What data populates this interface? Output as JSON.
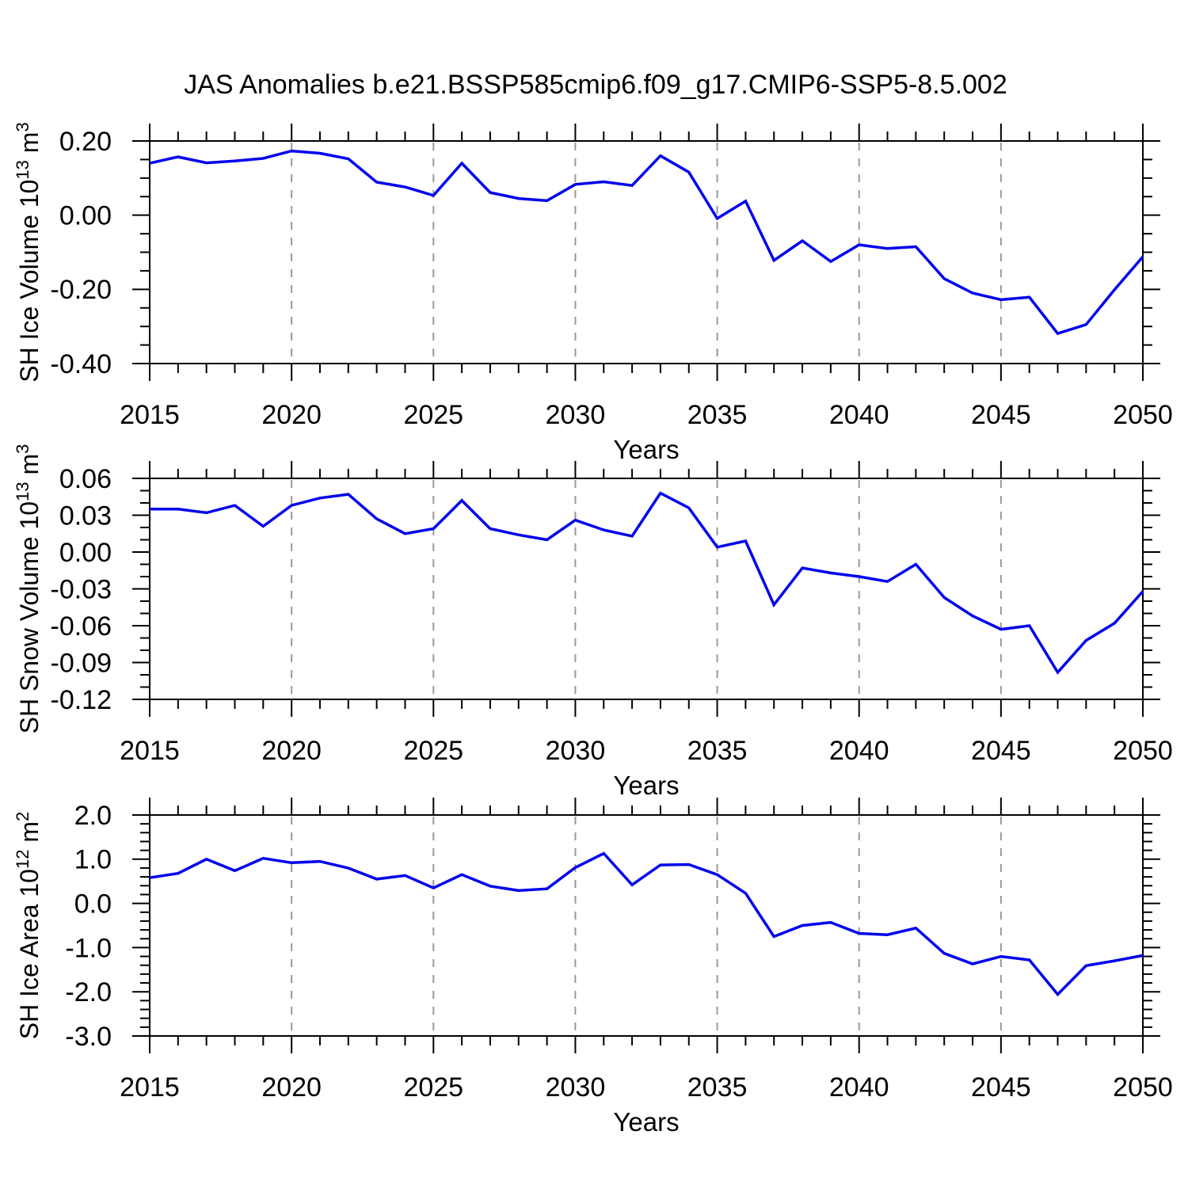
{
  "title": "JAS Anomalies b.e21.BSSP585cmip6.f09_g17.CMIP6-SSP5-8.5.002",
  "style": {
    "line_color": "#0000ee",
    "grid_color": "#999999",
    "axis_color": "#000000",
    "background": "#ffffff"
  },
  "x_axis": {
    "label": "Years",
    "min": 2015,
    "max": 2050,
    "major_step": 5,
    "minor_step": 1,
    "tick_labels": [
      "2015",
      "2020",
      "2025",
      "2030",
      "2035",
      "2040",
      "2045",
      "2050"
    ],
    "gridlines_at": [
      2020,
      2025,
      2030,
      2035,
      2040,
      2045
    ]
  },
  "chart_data": [
    {
      "type": "line",
      "ylabel": "SH Ice Volume 10^13 m^3",
      "ylabel_parts": [
        [
          "t",
          "SH Ice Volume 10"
        ],
        [
          "s",
          "13"
        ],
        [
          "t",
          " m"
        ],
        [
          "s",
          "3"
        ]
      ],
      "xlabel": "Years",
      "x": [
        2015,
        2016,
        2017,
        2018,
        2019,
        2020,
        2021,
        2022,
        2023,
        2024,
        2025,
        2026,
        2027,
        2028,
        2029,
        2030,
        2031,
        2032,
        2033,
        2034,
        2035,
        2036,
        2037,
        2038,
        2039,
        2040,
        2041,
        2042,
        2043,
        2044,
        2045,
        2046,
        2047,
        2048,
        2049,
        2050
      ],
      "values": [
        0.14,
        0.157,
        0.141,
        0.146,
        0.153,
        0.173,
        0.167,
        0.152,
        0.089,
        0.076,
        0.053,
        0.14,
        0.061,
        0.045,
        0.039,
        0.083,
        0.09,
        0.08,
        0.16,
        0.116,
        -0.009,
        0.038,
        -0.122,
        -0.069,
        -0.125,
        -0.08,
        -0.09,
        -0.085,
        -0.171,
        -0.21,
        -0.228,
        -0.221,
        -0.319,
        -0.295,
        -0.201,
        -0.112
      ],
      "ylim": [
        -0.4,
        0.2
      ],
      "yticks": [
        {
          "v": 0.2,
          "label": "0.20"
        },
        {
          "v": 0.0,
          "label": "0.00"
        },
        {
          "v": -0.2,
          "label": "-0.20"
        },
        {
          "v": -0.4,
          "label": "-0.40"
        }
      ],
      "y_minor_step": 0.05,
      "grid": "x-dashed"
    },
    {
      "type": "line",
      "ylabel": "SH Snow Volume 10^13 m^3",
      "ylabel_parts": [
        [
          "t",
          "SH Snow Volume 10"
        ],
        [
          "s",
          "13"
        ],
        [
          "t",
          " m"
        ],
        [
          "s",
          "3"
        ]
      ],
      "xlabel": "Years",
      "x": [
        2015,
        2016,
        2017,
        2018,
        2019,
        2020,
        2021,
        2022,
        2023,
        2024,
        2025,
        2026,
        2027,
        2028,
        2029,
        2030,
        2031,
        2032,
        2033,
        2034,
        2035,
        2036,
        2037,
        2038,
        2039,
        2040,
        2041,
        2042,
        2043,
        2044,
        2045,
        2046,
        2047,
        2048,
        2049,
        2050
      ],
      "values": [
        0.035,
        0.035,
        0.032,
        0.038,
        0.021,
        0.038,
        0.044,
        0.047,
        0.027,
        0.015,
        0.019,
        0.042,
        0.019,
        0.014,
        0.01,
        0.026,
        0.018,
        0.013,
        0.048,
        0.036,
        0.004,
        0.009,
        -0.043,
        -0.013,
        -0.017,
        -0.02,
        -0.024,
        -0.01,
        -0.037,
        -0.052,
        -0.063,
        -0.06,
        -0.098,
        -0.072,
        -0.058,
        -0.032
      ],
      "ylim": [
        -0.12,
        0.06
      ],
      "yticks": [
        {
          "v": 0.06,
          "label": "0.06"
        },
        {
          "v": 0.03,
          "label": "0.03"
        },
        {
          "v": 0.0,
          "label": "0.00"
        },
        {
          "v": -0.03,
          "label": "-0.03"
        },
        {
          "v": -0.06,
          "label": "-0.06"
        },
        {
          "v": -0.09,
          "label": "-0.09"
        },
        {
          "v": -0.12,
          "label": "-0.12"
        }
      ],
      "y_minor_step": 0.01,
      "grid": "x-dashed"
    },
    {
      "type": "line",
      "ylabel": "SH Ice Area 10^12 m^2",
      "ylabel_parts": [
        [
          "t",
          "SH Ice Area 10"
        ],
        [
          "s",
          "12"
        ],
        [
          "t",
          " m"
        ],
        [
          "s",
          "2"
        ]
      ],
      "xlabel": "Years",
      "x": [
        2015,
        2016,
        2017,
        2018,
        2019,
        2020,
        2021,
        2022,
        2023,
        2024,
        2025,
        2026,
        2027,
        2028,
        2029,
        2030,
        2031,
        2032,
        2033,
        2034,
        2035,
        2036,
        2037,
        2038,
        2039,
        2040,
        2041,
        2042,
        2043,
        2044,
        2045,
        2046,
        2047,
        2048,
        2049,
        2050
      ],
      "values": [
        0.58,
        0.68,
        1.0,
        0.74,
        1.02,
        0.92,
        0.95,
        0.8,
        0.55,
        0.63,
        0.35,
        0.65,
        0.39,
        0.29,
        0.33,
        0.81,
        1.13,
        0.42,
        0.87,
        0.88,
        0.65,
        0.23,
        -0.75,
        -0.5,
        -0.43,
        -0.68,
        -0.71,
        -0.56,
        -1.13,
        -1.37,
        -1.2,
        -1.28,
        -2.06,
        -1.41,
        -1.3,
        -1.18
      ],
      "ylim": [
        -3.0,
        2.0
      ],
      "yticks": [
        {
          "v": 2.0,
          "label": "2.0"
        },
        {
          "v": 1.0,
          "label": "1.0"
        },
        {
          "v": 0.0,
          "label": "0.0"
        },
        {
          "v": -1.0,
          "label": "-1.0"
        },
        {
          "v": -2.0,
          "label": "-2.0"
        },
        {
          "v": -3.0,
          "label": "-3.0"
        }
      ],
      "y_minor_step": 0.2,
      "grid": "x-dashed"
    }
  ]
}
